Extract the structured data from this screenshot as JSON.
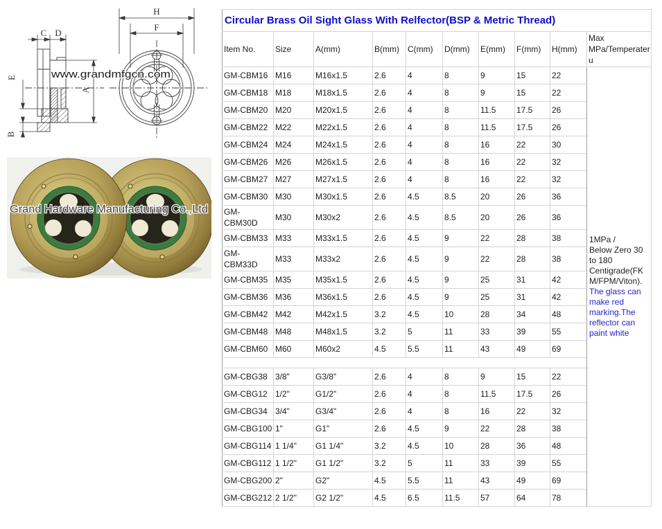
{
  "colors": {
    "title_blue": "#0e0ecc",
    "note_blue": "#2222cc",
    "text": "#1d1d1d",
    "grid_light": "#d4d4d4",
    "grid_dark": "#9c9c9c",
    "brass_light": "#d6c67e",
    "brass_dark": "#665426",
    "oring_green": "#3e7a40"
  },
  "drawing": {
    "watermark": "www.grandmfgcn.com",
    "labels": {
      "h": "H",
      "f": "F",
      "c": "C",
      "d": "D",
      "e": "E",
      "a": "A",
      "b": "B"
    }
  },
  "photo": {
    "watermark": "Grand Hardware Manufacturing Co.,Ltd"
  },
  "table": {
    "title": "Circular Brass Oil Sight Glass With Relfector(BSP & Metric Thread)",
    "headers": [
      "Item No.",
      "Size",
      "A(mm)",
      "B(mm)",
      "C(mm)",
      "D(mm)",
      "E(mm)",
      "F(mm)",
      "H(mm)",
      "Max MPa/Temperateru"
    ],
    "metric_rows": [
      [
        "GM-CBM16",
        "M16",
        "M16x1.5",
        "2.6",
        "4",
        "8",
        "9",
        "15",
        "22"
      ],
      [
        "GM-CBM18",
        "M18",
        "M18x1.5",
        "2.6",
        "4",
        "8",
        "9",
        "15",
        "22"
      ],
      [
        "GM-CBM20",
        "M20",
        "M20x1.5",
        "2.6",
        "4",
        "8",
        "11.5",
        "17.5",
        "26"
      ],
      [
        "GM-CBM22",
        "M22",
        "M22x1.5",
        "2.6",
        "4",
        "8",
        "11.5",
        "17.5",
        "26"
      ],
      [
        "GM-CBM24",
        "M24",
        "M24x1.5",
        "2.6",
        "4",
        "8",
        "16",
        "22",
        "30"
      ],
      [
        "GM-CBM26",
        "M26",
        "M26x1.5",
        "2.6",
        "4",
        "8",
        "16",
        "22",
        "32"
      ],
      [
        "GM-CBM27",
        "M27",
        "M27x1.5",
        "2.6",
        "4",
        "8",
        "16",
        "22",
        "32"
      ],
      [
        "GM-CBM30",
        "M30",
        "M30x1.5",
        "2.6",
        "4.5",
        "8.5",
        "20",
        "26",
        "36"
      ],
      [
        "GM-CBM30D",
        "M30",
        "M30x2",
        "2.6",
        "4.5",
        "8.5",
        "20",
        "26",
        "36"
      ],
      [
        "GM-CBM33",
        "M33",
        "M33x1.5",
        "2.6",
        "4.5",
        "9",
        "22",
        "28",
        "38"
      ],
      [
        "GM-CBM33D",
        "M33",
        "M33x2",
        "2.6",
        "4.5",
        "9",
        "22",
        "28",
        "38"
      ],
      [
        "GM-CBM35",
        "M35",
        "M35x1.5",
        "2.6",
        "4.5",
        "9",
        "25",
        "31",
        "42"
      ],
      [
        "GM-CBM36",
        "M36",
        "M36x1.5",
        "2.6",
        "4.5",
        "9",
        "25",
        "31",
        "42"
      ],
      [
        "GM-CBM42",
        "M42",
        "M42x1.5",
        "3.2",
        "4.5",
        "10",
        "28",
        "34",
        "48"
      ],
      [
        "GM-CBM48",
        "M48",
        "M48x1.5",
        "3.2",
        "5",
        "11",
        "33",
        "39",
        "55"
      ],
      [
        "GM-CBM60",
        "M60",
        "M60x2",
        "4.5",
        "5.5",
        "11",
        "43",
        "49",
        "69"
      ]
    ],
    "bsp_rows": [
      [
        "GM-CBG38",
        "3/8\"",
        "G3/8\"",
        "2.6",
        "4",
        "8",
        "9",
        "15",
        "22"
      ],
      [
        "GM-CBG12",
        "1/2\"",
        "G1/2\"",
        "2.6",
        "4",
        "8",
        "11.5",
        "17.5",
        "26"
      ],
      [
        "GM-CBG34",
        "3/4\"",
        "G3/4\"",
        "2.6",
        "4",
        "8",
        "16",
        "22",
        "32"
      ],
      [
        "GM-CBG100",
        "1\"",
        "G1\"",
        "2.6",
        "4.5",
        "9",
        "22",
        "28",
        "38"
      ],
      [
        "GM-CBG114",
        "1 1/4\"",
        "G1 1/4\"",
        "3.2",
        "4.5",
        "10",
        "28",
        "36",
        "48"
      ],
      [
        "GM-CBG112",
        "1 1/2\"",
        "G1 1/2\"",
        "3.2",
        "5",
        "11",
        "33",
        "39",
        "55"
      ],
      [
        "GM-CBG200",
        "2\"",
        "G2\"",
        "4.5",
        "5.5",
        "11",
        "43",
        "49",
        "69"
      ],
      [
        "GM-CBG212",
        "2 1/2\"",
        "G2 1/2\"",
        "4.5",
        "6.5",
        "11.5",
        "57",
        "64",
        "78"
      ]
    ],
    "max_note": {
      "black": "1MPa  /\nBelow Zero 30 to 180 Centigrade(FKM/FPM/Viton).",
      "blue": "The glass can make red marking.The reflector can paint white"
    }
  }
}
